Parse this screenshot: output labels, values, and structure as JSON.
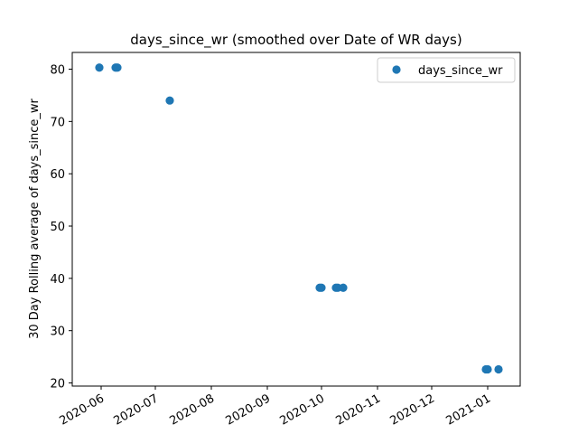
{
  "chart_data": {
    "type": "scatter",
    "title": "days_since_wr (smoothed over Date of WR days)",
    "xlabel": "",
    "ylabel": "30 Day Rolling average of days_since_wr",
    "x_is_date": true,
    "xlim": [
      "2020-05-16",
      "2021-01-19"
    ],
    "ylim": [
      19.4,
      83.2
    ],
    "x_ticks": [
      "2020-06-01",
      "2020-07-01",
      "2020-08-01",
      "2020-09-01",
      "2020-10-01",
      "2020-11-01",
      "2020-12-01",
      "2021-01-01"
    ],
    "x_tick_labels": [
      "2020-06",
      "2020-07",
      "2020-08",
      "2020-09",
      "2020-10",
      "2020-11",
      "2020-12",
      "2021-01"
    ],
    "y_ticks": [
      20,
      30,
      40,
      50,
      60,
      70,
      80
    ],
    "y_tick_labels": [
      "20",
      "30",
      "40",
      "50",
      "60",
      "70",
      "80"
    ],
    "grid": false,
    "legend_position": "top-right",
    "series": [
      {
        "name": "days_since_wr",
        "color": "#1f77b4",
        "points": [
          {
            "x": "2020-05-31",
            "y": 80.3
          },
          {
            "x": "2020-06-09",
            "y": 80.3
          },
          {
            "x": "2020-06-10",
            "y": 80.3
          },
          {
            "x": "2020-07-09",
            "y": 74.0
          },
          {
            "x": "2020-09-30",
            "y": 38.2
          },
          {
            "x": "2020-10-01",
            "y": 38.2
          },
          {
            "x": "2020-10-09",
            "y": 38.2
          },
          {
            "x": "2020-10-10",
            "y": 38.2
          },
          {
            "x": "2020-10-13",
            "y": 38.2
          },
          {
            "x": "2020-12-31",
            "y": 22.6
          },
          {
            "x": "2021-01-01",
            "y": 22.6
          },
          {
            "x": "2021-01-07",
            "y": 22.6
          }
        ]
      }
    ]
  }
}
